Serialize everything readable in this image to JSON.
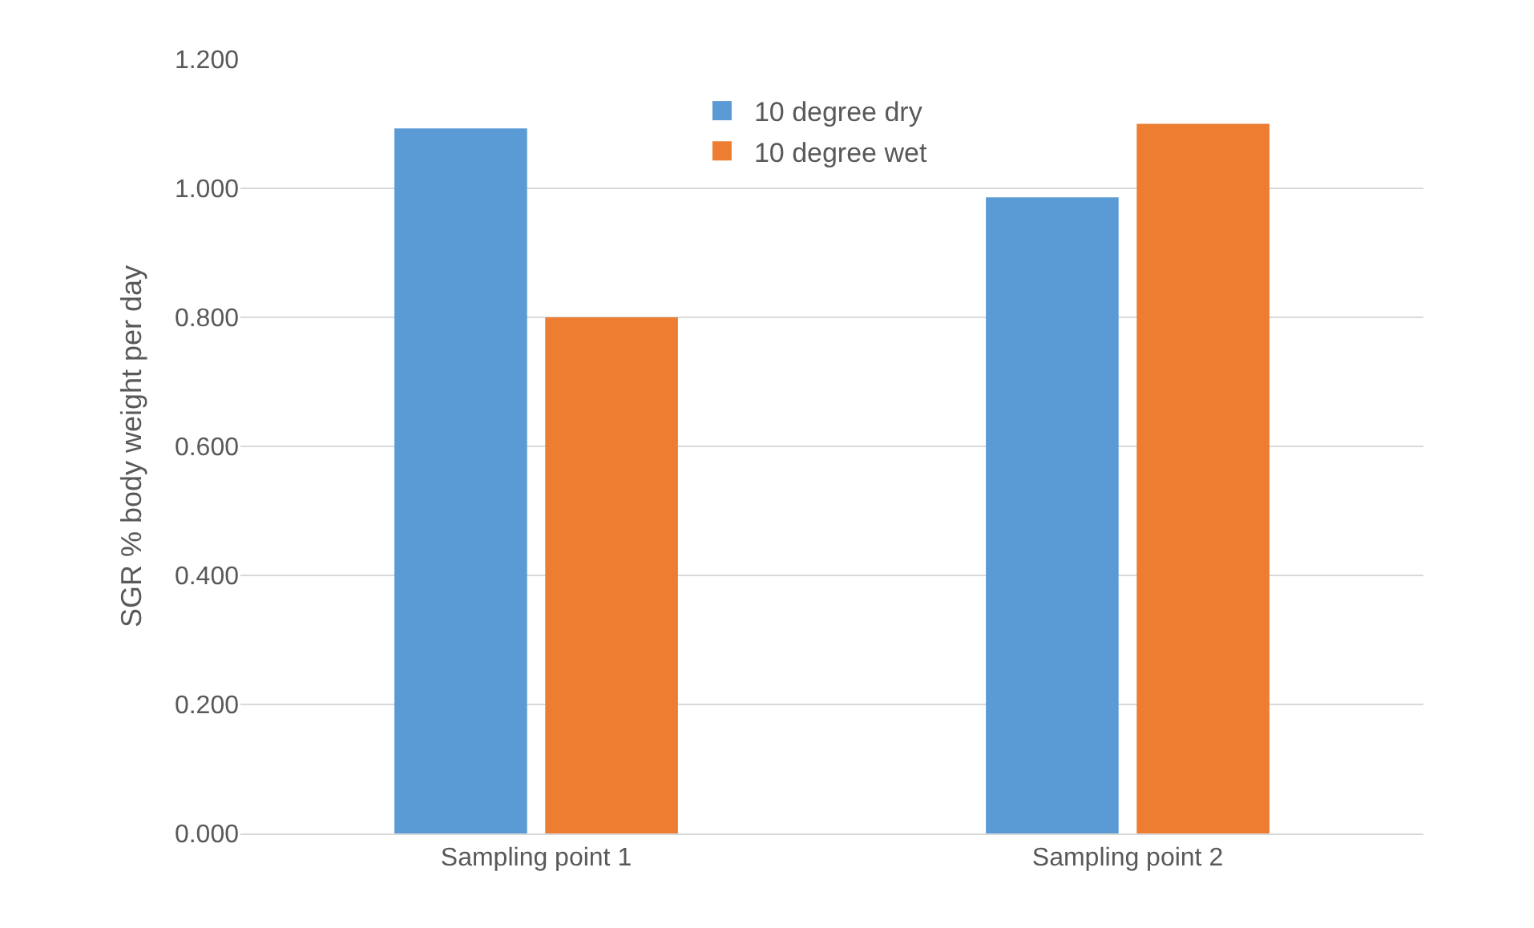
{
  "chart_data": {
    "type": "bar",
    "ylabel": "SGR % body weight per day",
    "categories": [
      "Sampling point 1",
      "Sampling point 2"
    ],
    "series": [
      {
        "name": "10 degree dry",
        "color": "#5b9bd5",
        "values": [
          1.093,
          0.986
        ]
      },
      {
        "name": "10 degree wet",
        "color": "#ed7d31",
        "values": [
          0.8,
          1.1
        ]
      }
    ],
    "ylim": [
      0,
      1.2
    ],
    "yticks": [
      {
        "value": 0,
        "label": "0.000"
      },
      {
        "value": 0.2,
        "label": "0.200"
      },
      {
        "value": 0.4,
        "label": "0.400"
      },
      {
        "value": 0.6,
        "label": "0.600"
      },
      {
        "value": 0.8,
        "label": "0.800"
      },
      {
        "value": 1.0,
        "label": "1.000"
      },
      {
        "value": 1.2,
        "label": "1.200"
      }
    ],
    "grid": "y",
    "legend": "top"
  }
}
